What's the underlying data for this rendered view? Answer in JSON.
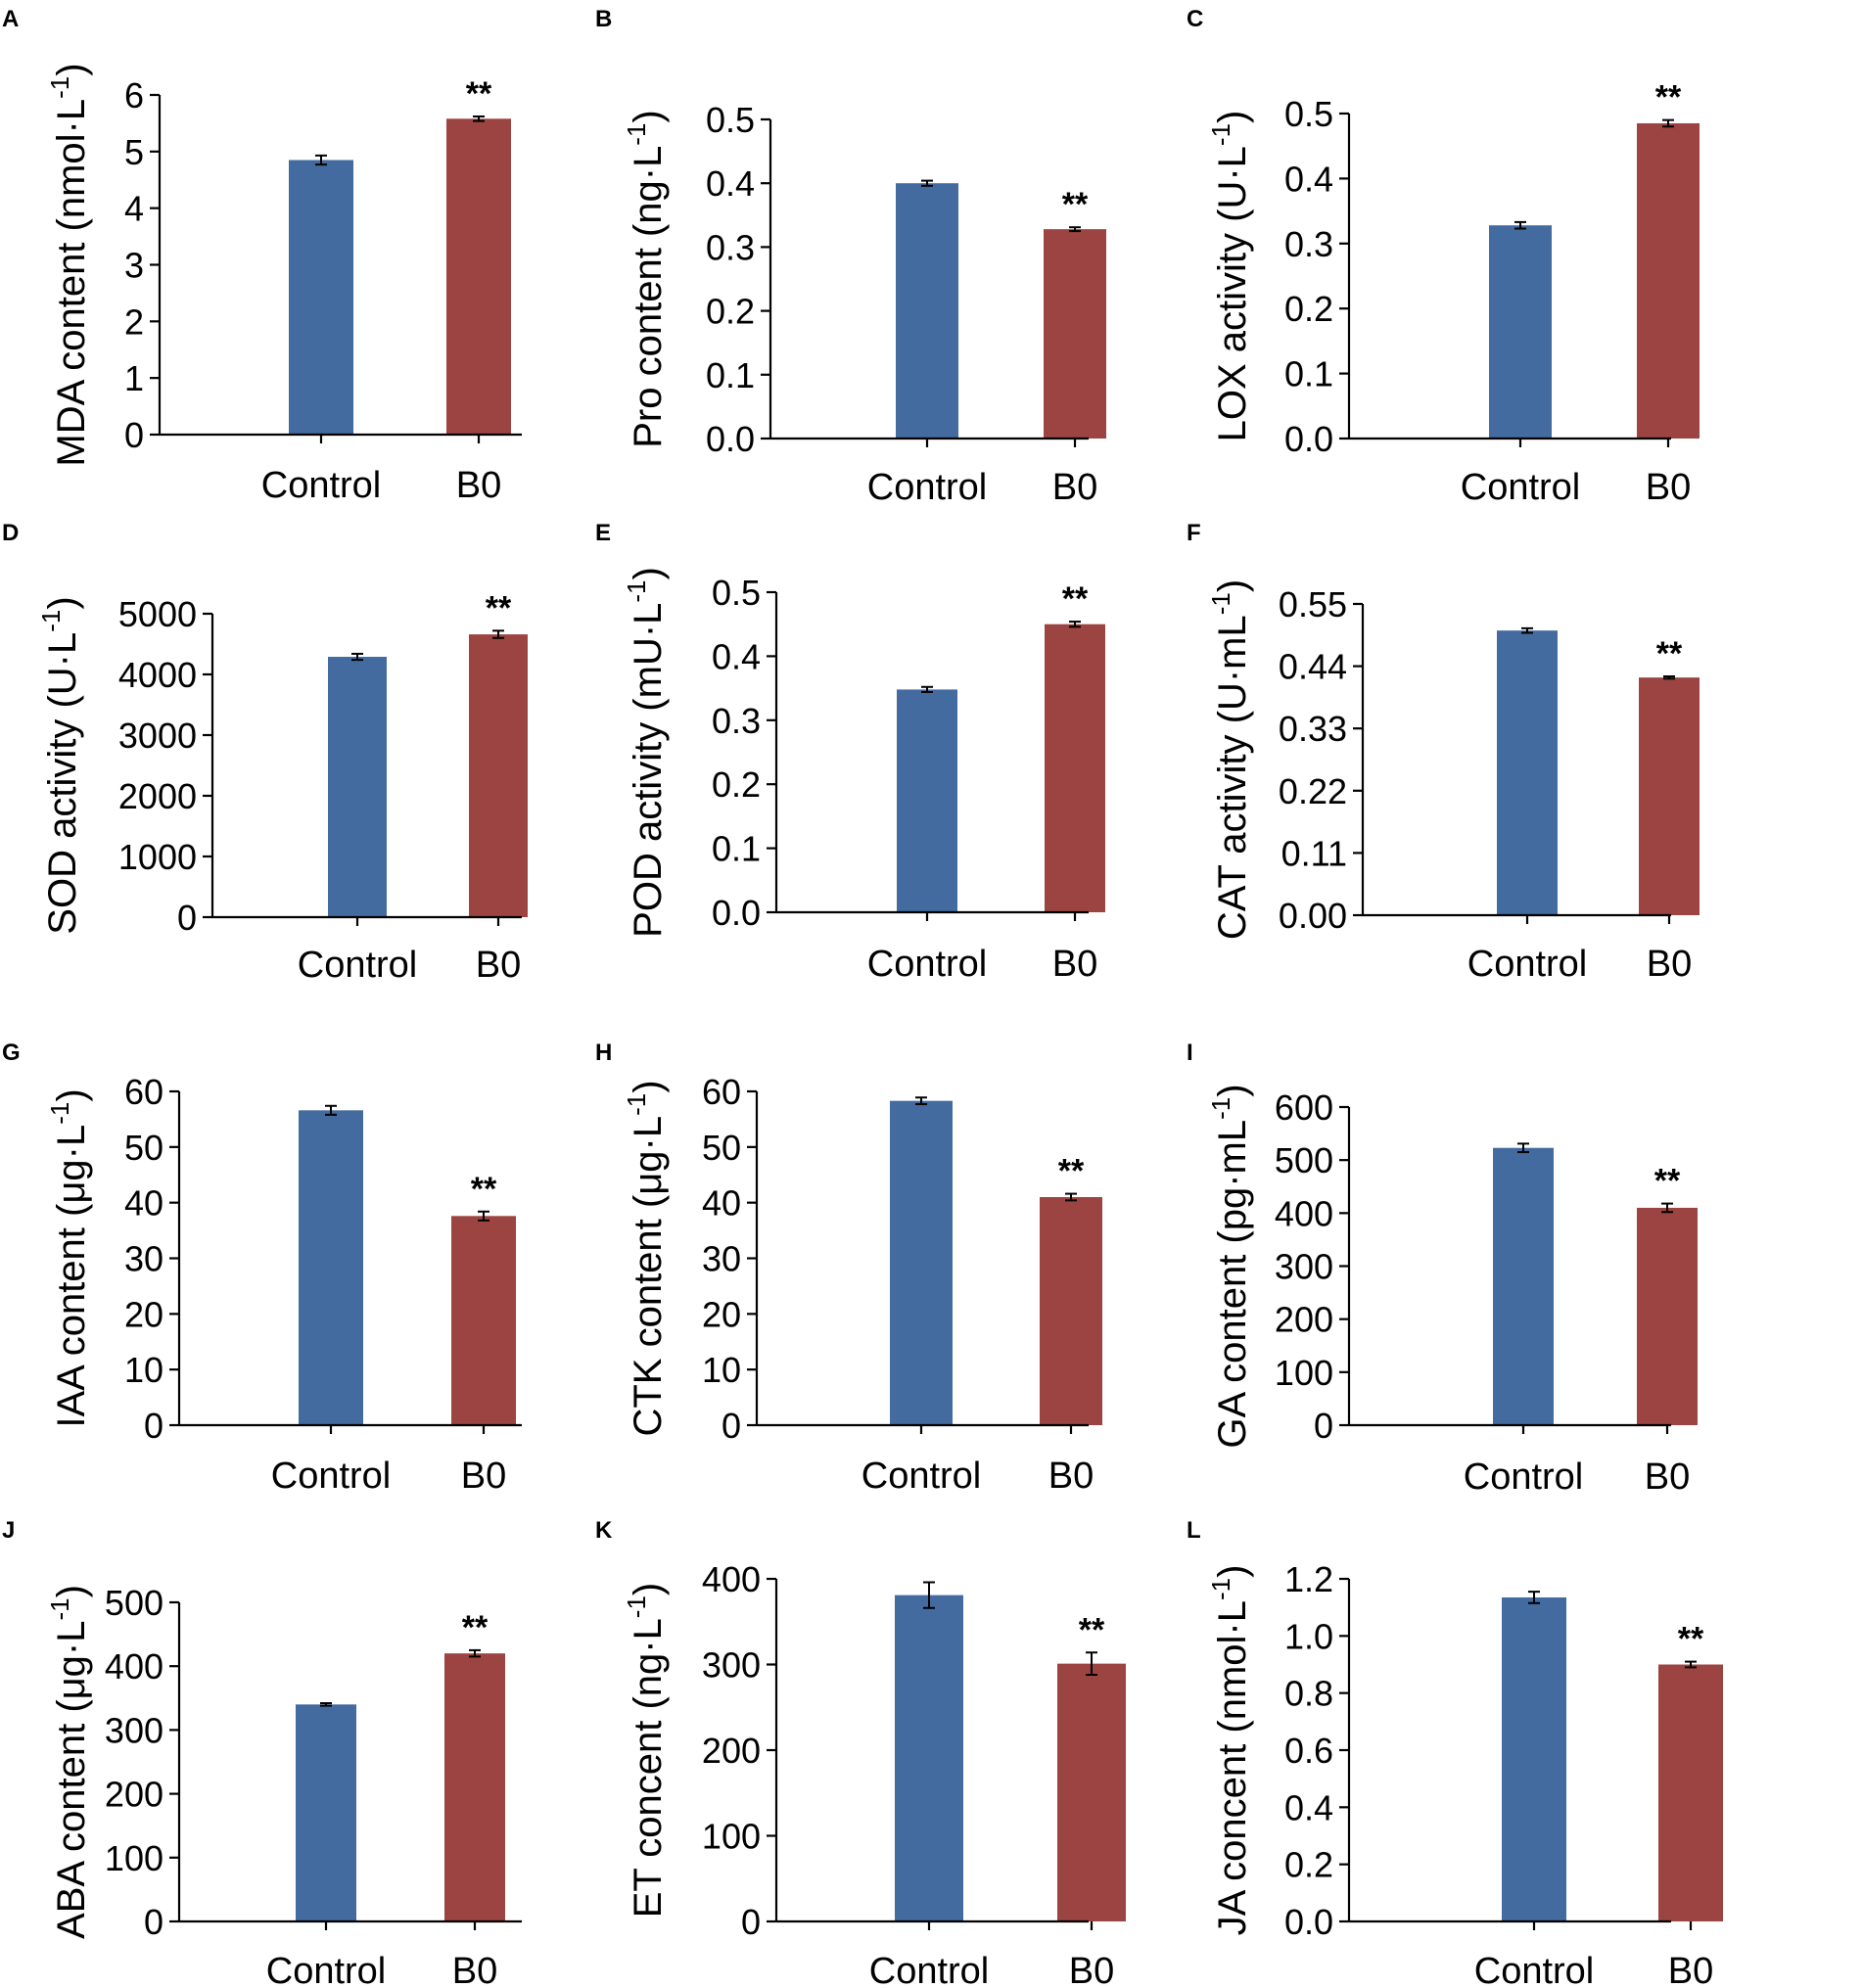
{
  "figure": {
    "colors": {
      "control": "#436b9f",
      "b0": "#9c4441",
      "axis": "#000000"
    },
    "panels": [
      {
        "letter": "A",
        "ylabel": "MDA content (nmol·L",
        "ylabel_sup": "-1",
        "ylabel_close": ")",
        "chart_data": {
          "type": "bar",
          "categories": [
            "Control",
            "B0"
          ],
          "values": [
            4.85,
            5.58
          ],
          "errors": [
            0.08,
            0.04
          ],
          "ylim": [
            0,
            6
          ],
          "yticks": [
            "0",
            "1",
            "2",
            "3",
            "4",
            "5",
            "6"
          ],
          "significance": [
            "",
            "**"
          ]
        }
      },
      {
        "letter": "B",
        "ylabel": "Pro content (ng·L",
        "ylabel_sup": "-1",
        "ylabel_close": ")",
        "chart_data": {
          "type": "bar",
          "categories": [
            "Control",
            "B0"
          ],
          "values": [
            0.4,
            0.328
          ],
          "errors": [
            0.004,
            0.003
          ],
          "ylim": [
            0,
            0.5
          ],
          "yticks": [
            "0.0",
            "0.1",
            "0.2",
            "0.3",
            "0.4",
            "0.5"
          ],
          "significance": [
            "",
            "**"
          ]
        }
      },
      {
        "letter": "C",
        "ylabel": "LOX activity (U·L",
        "ylabel_sup": "-1",
        "ylabel_close": ")",
        "chart_data": {
          "type": "bar",
          "categories": [
            "Control",
            "B0"
          ],
          "values": [
            0.328,
            0.485
          ],
          "errors": [
            0.005,
            0.005
          ],
          "ylim": [
            0,
            0.5
          ],
          "yticks": [
            "0.0",
            "0.1",
            "0.2",
            "0.3",
            "0.4",
            "0.5"
          ],
          "significance": [
            "",
            "**"
          ]
        }
      },
      {
        "letter": "D",
        "ylabel": "SOD activity (U·L",
        "ylabel_sup": "-1",
        "ylabel_close": ")",
        "chart_data": {
          "type": "bar",
          "categories": [
            "Control",
            "B0"
          ],
          "values": [
            4290,
            4660
          ],
          "errors": [
            50,
            60
          ],
          "ylim": [
            0,
            5000
          ],
          "yticks": [
            "0",
            "1000",
            "2000",
            "3000",
            "4000",
            "5000"
          ],
          "significance": [
            "",
            "**"
          ]
        }
      },
      {
        "letter": "E",
        "ylabel": "POD activity (mU·L",
        "ylabel_sup": "-1",
        "ylabel_close": ")",
        "chart_data": {
          "type": "bar",
          "categories": [
            "Control",
            "B0"
          ],
          "values": [
            0.348,
            0.45
          ],
          "errors": [
            0.004,
            0.004
          ],
          "ylim": [
            0,
            0.5
          ],
          "yticks": [
            "0.0",
            "0.1",
            "0.2",
            "0.3",
            "0.4",
            "0.5"
          ],
          "significance": [
            "",
            "**"
          ]
        }
      },
      {
        "letter": "F",
        "ylabel": "CAT activity (U·mL",
        "ylabel_sup": "-1",
        "ylabel_close": ")",
        "chart_data": {
          "type": "bar",
          "categories": [
            "Control",
            "B0"
          ],
          "values": [
            0.503,
            0.42
          ],
          "errors": [
            0.004,
            0.002
          ],
          "ylim": [
            0,
            0.55
          ],
          "yticks": [
            "0.00",
            "0.11",
            "0.22",
            "0.33",
            "0.44",
            "0.55"
          ],
          "significance": [
            "",
            "**"
          ]
        }
      },
      {
        "letter": "G",
        "ylabel": "IAA content (μg·L",
        "ylabel_sup": "-1",
        "ylabel_close": ")",
        "chart_data": {
          "type": "bar",
          "categories": [
            "Control",
            "B0"
          ],
          "values": [
            56.6,
            37.6
          ],
          "errors": [
            0.8,
            0.8
          ],
          "ylim": [
            0,
            60
          ],
          "yticks": [
            "0",
            "10",
            "20",
            "30",
            "40",
            "50",
            "60"
          ],
          "significance": [
            "",
            "**"
          ]
        }
      },
      {
        "letter": "H",
        "ylabel": "CTK content (μg·L",
        "ylabel_sup": "-1",
        "ylabel_close": ")",
        "chart_data": {
          "type": "bar",
          "categories": [
            "Control",
            "B0"
          ],
          "values": [
            58.3,
            41.0
          ],
          "errors": [
            0.6,
            0.6
          ],
          "ylim": [
            0,
            60
          ],
          "yticks": [
            "0",
            "10",
            "20",
            "30",
            "40",
            "50",
            "60"
          ],
          "significance": [
            "",
            "**"
          ]
        }
      },
      {
        "letter": "I",
        "ylabel": "GA content (pg·mL",
        "ylabel_sup": "-1",
        "ylabel_close": ")",
        "chart_data": {
          "type": "bar",
          "categories": [
            "Control",
            "B0"
          ],
          "values": [
            523,
            410
          ],
          "errors": [
            8,
            8
          ],
          "ylim": [
            0,
            600
          ],
          "yticks": [
            "0",
            "100",
            "200",
            "300",
            "400",
            "500",
            "600"
          ],
          "significance": [
            "",
            "**"
          ]
        }
      },
      {
        "letter": "J",
        "ylabel": "ABA content (μg·L",
        "ylabel_sup": "-1",
        "ylabel_close": ")",
        "chart_data": {
          "type": "bar",
          "categories": [
            "Control",
            "B0"
          ],
          "values": [
            340,
            420
          ],
          "errors": [
            2,
            5
          ],
          "ylim": [
            0,
            500
          ],
          "yticks": [
            "0",
            "100",
            "200",
            "300",
            "400",
            "500"
          ],
          "significance": [
            "",
            "**"
          ]
        }
      },
      {
        "letter": "K",
        "ylabel": "ET concent (ng·L",
        "ylabel_sup": "-1",
        "ylabel_close": ")",
        "chart_data": {
          "type": "bar",
          "categories": [
            "Control",
            "B0"
          ],
          "values": [
            381,
            301
          ],
          "errors": [
            15,
            13
          ],
          "ylim": [
            0,
            400
          ],
          "yticks": [
            "0",
            "100",
            "200",
            "300",
            "400"
          ],
          "significance": [
            "",
            "**"
          ]
        }
      },
      {
        "letter": "L",
        "ylabel": "JA concent (nmol·L",
        "ylabel_sup": "-1",
        "ylabel_close": ")",
        "chart_data": {
          "type": "bar",
          "categories": [
            "Control",
            "B0"
          ],
          "values": [
            1.135,
            0.9
          ],
          "errors": [
            0.02,
            0.01
          ],
          "ylim": [
            0,
            1.2
          ],
          "yticks": [
            "0.0",
            "0.2",
            "0.4",
            "0.6",
            "0.8",
            "1.0",
            "1.2"
          ],
          "significance": [
            "",
            "**"
          ]
        }
      }
    ]
  }
}
